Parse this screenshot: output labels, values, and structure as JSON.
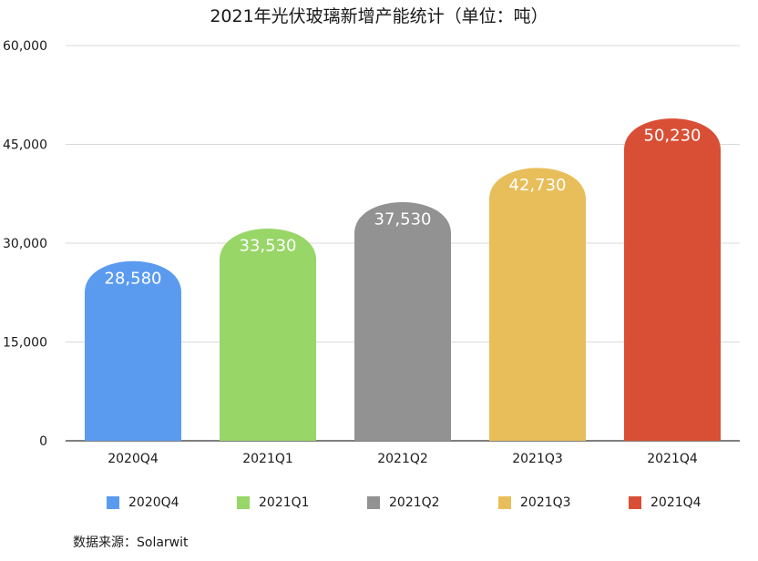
{
  "chart_data": {
    "type": "bar",
    "title": "2021年光伏玻璃新增产能统计（单位：吨）",
    "categories": [
      "2020Q4",
      "2021Q1",
      "2021Q2",
      "2021Q3",
      "2021Q4"
    ],
    "values": [
      28580,
      33530,
      37530,
      42730,
      50230
    ],
    "value_labels": [
      "28,580",
      "33,530",
      "37,530",
      "42,730",
      "50,230"
    ],
    "colors": [
      "#5B9BEF",
      "#98D668",
      "#929292",
      "#E8BE5A",
      "#D94F35"
    ],
    "ylim": [
      0,
      60000
    ],
    "yticks": [
      0,
      15000,
      30000,
      45000,
      60000
    ],
    "ytick_labels": [
      "0",
      "15,000",
      "30,000",
      "45,000",
      "60,000"
    ],
    "grid": true,
    "legend_position": "bottom",
    "bar_shape": "rounded-top",
    "xlabel": "",
    "ylabel": ""
  },
  "source_note": "数据来源：Solarwit"
}
